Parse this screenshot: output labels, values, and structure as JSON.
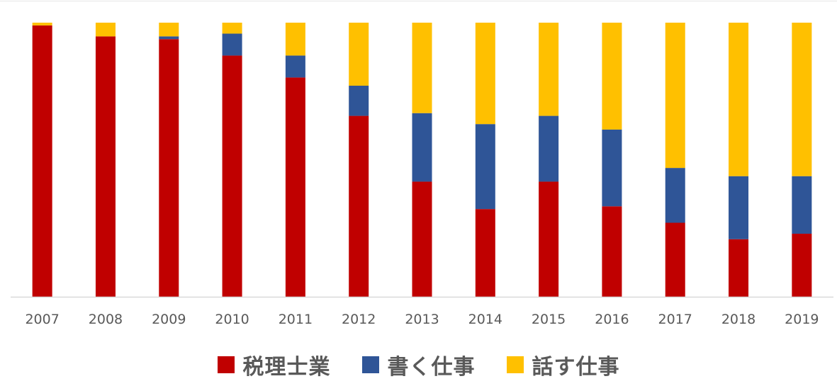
{
  "chart_data": {
    "type": "bar",
    "stacked": true,
    "percent_stacked": true,
    "categories": [
      "2007",
      "2008",
      "2009",
      "2010",
      "2011",
      "2012",
      "2013",
      "2014",
      "2015",
      "2016",
      "2017",
      "2018",
      "2019"
    ],
    "series": [
      {
        "name": "税理士業",
        "color": "#C00000",
        "values": [
          99,
          95,
          94,
          88,
          80,
          66,
          42,
          32,
          42,
          33,
          27,
          21,
          23
        ]
      },
      {
        "name": "書く仕事",
        "color": "#2F5597",
        "values": [
          0,
          0,
          1,
          8,
          8,
          11,
          25,
          31,
          24,
          28,
          20,
          23,
          21
        ]
      },
      {
        "name": "話す仕事",
        "color": "#FFC000",
        "values": [
          1,
          5,
          5,
          4,
          12,
          23,
          33,
          37,
          34,
          39,
          53,
          56,
          56
        ]
      }
    ],
    "ylim": [
      0,
      100
    ],
    "grid": false,
    "legend_position": "bottom"
  }
}
